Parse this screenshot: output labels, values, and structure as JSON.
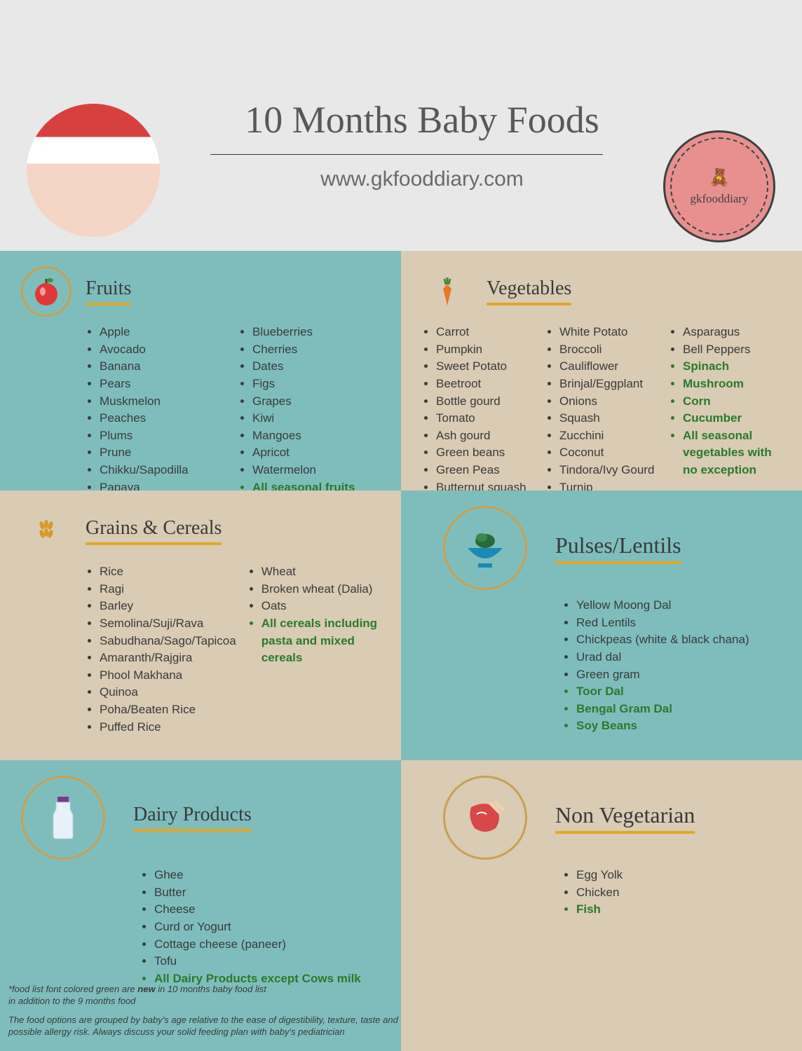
{
  "header": {
    "title": "10 Months Baby Foods",
    "website": "www.gkfooddiary.com",
    "logo_text": "gkfooddiary"
  },
  "sections": {
    "fruits": {
      "title": "Fruits",
      "col1": [
        "Apple",
        "Avocado",
        "Banana",
        "Pears",
        "Muskmelon",
        "Peaches",
        "Plums",
        "Prune",
        "Chikku/Sapodilla",
        "Papaya"
      ],
      "col2": [
        "Blueberries",
        "Cherries",
        "Dates",
        "Figs",
        "Grapes",
        "Kiwi",
        "Mangoes",
        "Apricot",
        "Watermelon"
      ],
      "col2_new": [
        "All seasonal fruits except citrus fruits"
      ]
    },
    "vegetables": {
      "title": "Vegetables",
      "col1": [
        "Carrot",
        "Pumpkin",
        "Sweet Potato",
        "Beetroot",
        "Bottle gourd",
        "Tomato",
        "Ash gourd",
        "Green beans",
        "Green Peas",
        "Butternut squash"
      ],
      "col2": [
        "White Potato",
        "Broccoli",
        "Cauliflower",
        "Brinjal/Eggplant",
        "Onions",
        "Squash",
        "Zucchini",
        "Coconut",
        "Tindora/Ivy Gourd",
        "Turnip"
      ],
      "col3": [
        "Asparagus",
        "Bell Peppers"
      ],
      "col3_new": [
        "Spinach",
        "Mushroom",
        "Corn",
        "Cucumber",
        "All seasonal vegetables with no exception"
      ]
    },
    "grains": {
      "title": "Grains & Cereals",
      "col1": [
        "Rice",
        "Ragi",
        "Barley",
        "Semolina/Suji/Rava",
        "Sabudhana/Sago/Tapicoa",
        "Amaranth/Rajgira",
        "Phool Makhana",
        "Quinoa",
        "Poha/Beaten Rice",
        "Puffed Rice"
      ],
      "col2": [
        "Wheat",
        "Broken wheat (Dalia)",
        " Oats"
      ],
      "col2_new": [
        "All cereals including pasta and mixed cereals"
      ]
    },
    "pulses": {
      "title": "Pulses/Lentils",
      "items": [
        "Yellow Moong Dal",
        "Red Lentils",
        "Chickpeas (white & black chana)",
        "Urad dal",
        "Green gram"
      ],
      "items_new": [
        "Toor Dal",
        "Bengal Gram Dal",
        "Soy Beans"
      ]
    },
    "dairy": {
      "title": "Dairy Products",
      "items": [
        "Ghee",
        "Butter",
        "Cheese",
        "Curd or Yogurt",
        "Cottage cheese (paneer)",
        "Tofu"
      ],
      "items_new": [
        "All Dairy Products except Cows milk"
      ]
    },
    "nonveg": {
      "title": "Non Vegetarian",
      "items": [
        "Egg Yolk",
        "Chicken"
      ],
      "items_new": [
        "Fish"
      ]
    }
  },
  "footnotes": {
    "note1": "*food list font colored green are new in 10 months baby food list in addition to the 9 months food",
    "note2": "The food options are grouped by baby's age relative to the ease of digestibility, texture, taste and possible allergy risk. Always discuss your solid feeding plan with baby's pediatrician"
  },
  "colors": {
    "teal": "#7fbdbd",
    "tan": "#d9cbb4",
    "accent": "#e0a828",
    "new_text": "#2a7a2a"
  }
}
